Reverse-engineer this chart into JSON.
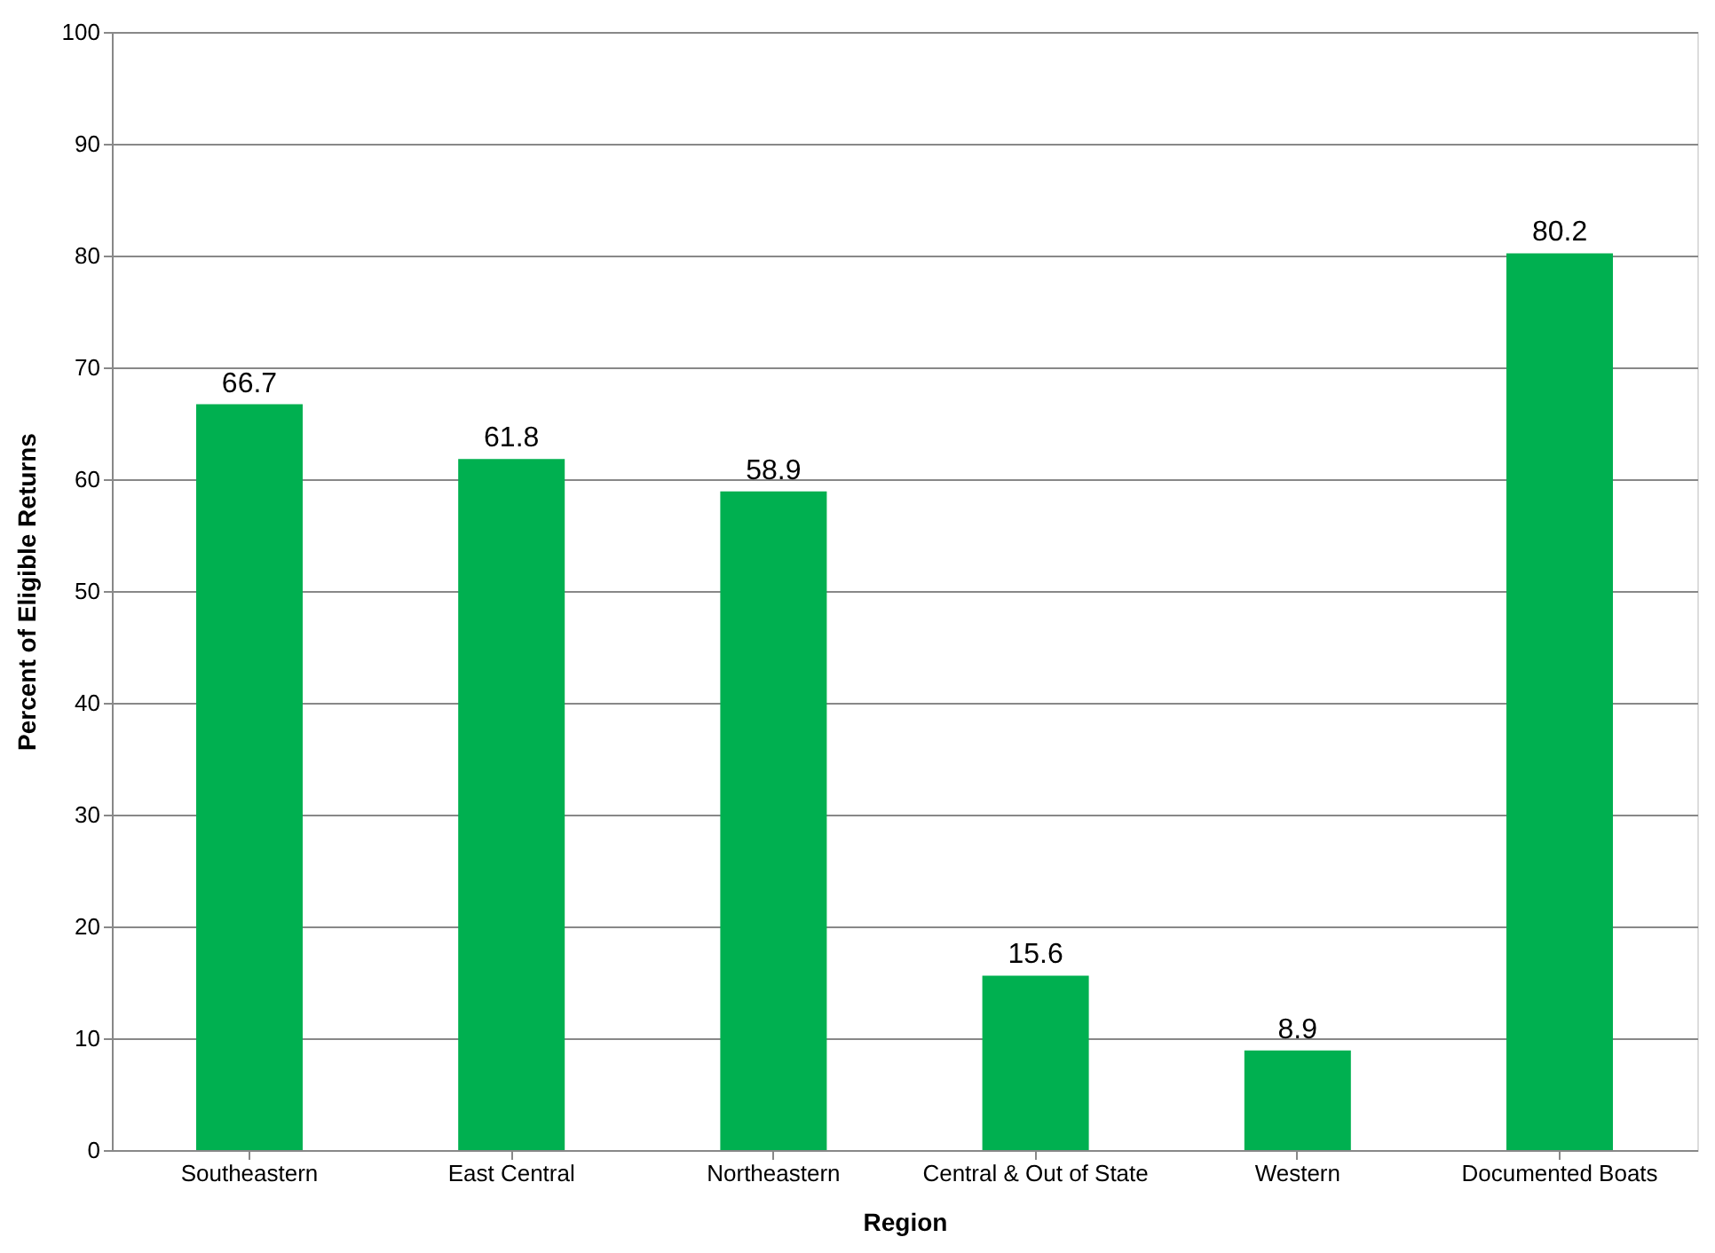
{
  "chart_data": {
    "type": "bar",
    "xlabel": "Region",
    "ylabel": "Percent of Eligible Returns",
    "categories": [
      "Southeastern",
      "East Central",
      "Northeastern",
      "Central & Out of State",
      "Western",
      "Documented Boats"
    ],
    "values": [
      66.7,
      61.8,
      58.9,
      15.6,
      8.9,
      80.2
    ],
    "color": "#00b050",
    "ylim": [
      0,
      100
    ],
    "yticks": [
      0,
      10,
      20,
      30,
      40,
      50,
      60,
      70,
      80,
      90,
      100
    ],
    "grid": "y",
    "data_labels": true
  }
}
